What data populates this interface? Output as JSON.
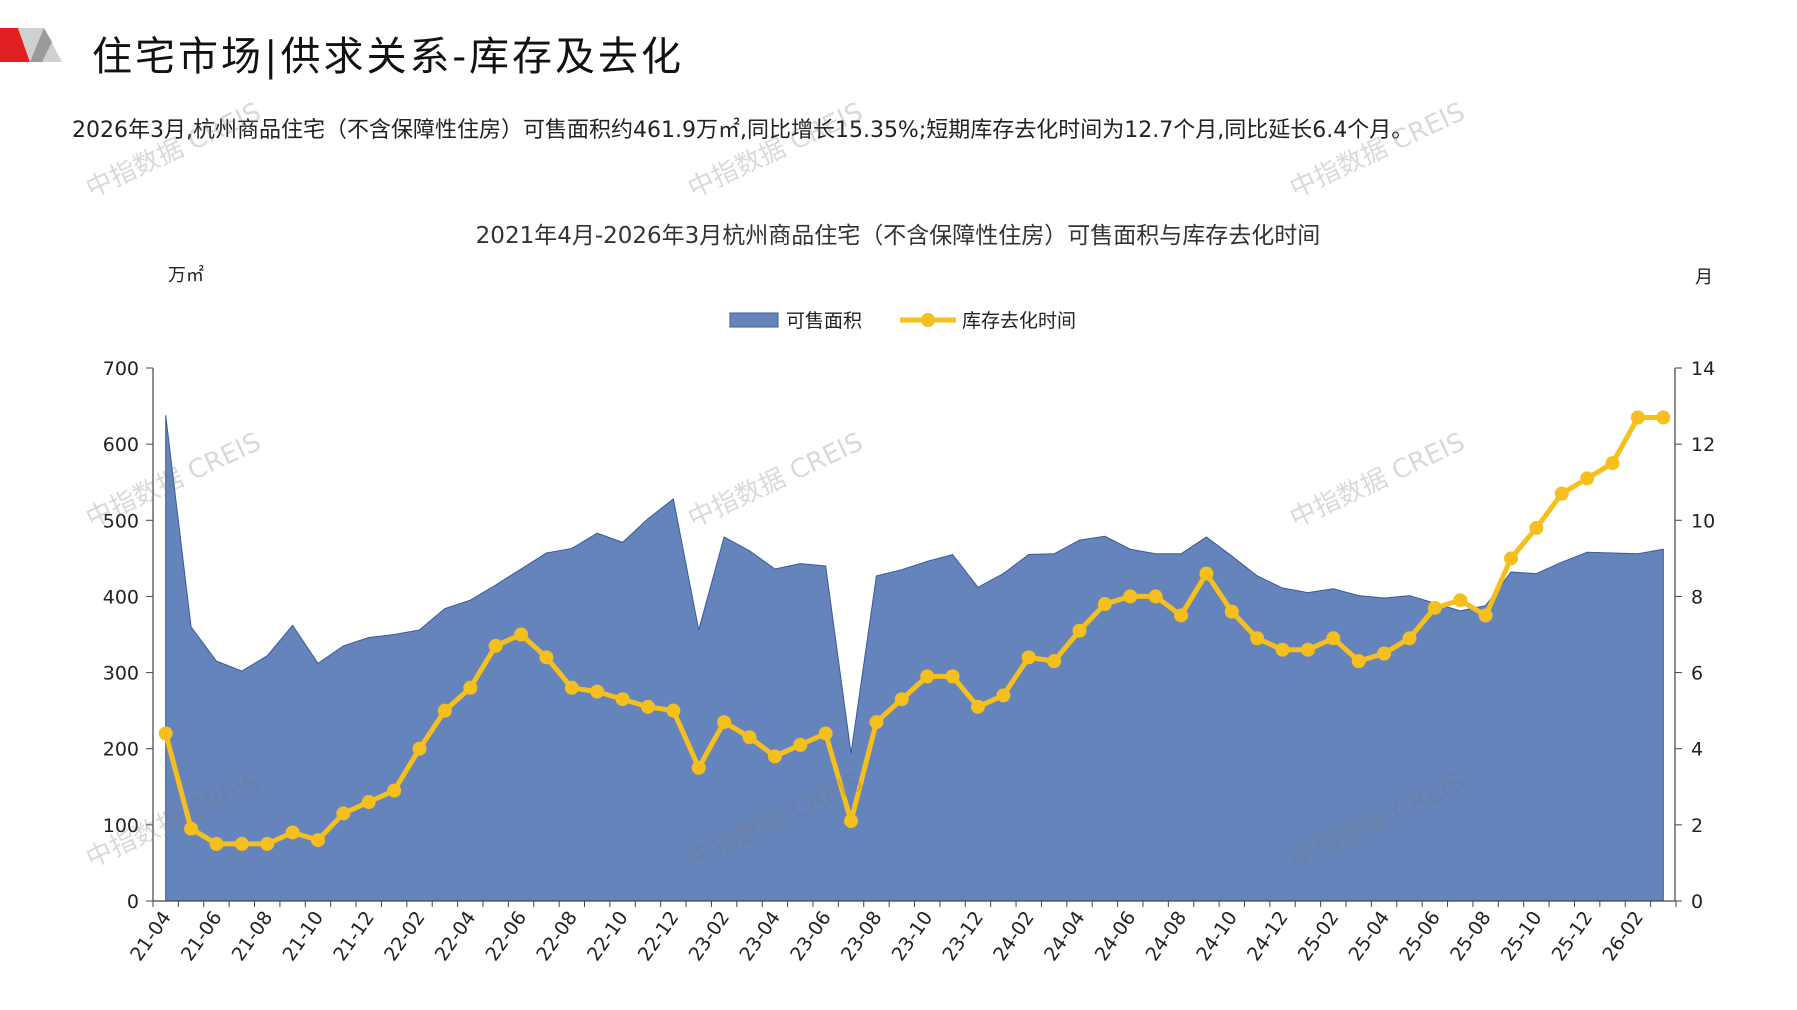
{
  "header": {
    "title": "住宅市场|供求关系-库存及去化",
    "summary": "2026年3月,杭州商品住宅（不含保障性住房）可售面积约461.9万㎡,同比增长15.35%;短期库存去化时间为12.7个月,同比延长6.4个月。"
  },
  "watermark": "中指数据 CREIS",
  "colors": {
    "area": "#6584BC",
    "area_edge": "#3A5A9A",
    "line": "#F5C01D",
    "accent_red": "#E02020"
  },
  "chart_data": {
    "type": "area+line",
    "title": "2021年4月-2026年3月杭州商品住宅（不含保障性住房）可售面积与库存去化时间",
    "y_left_unit": "万㎡",
    "y_right_unit": "月",
    "ylim_left": [
      0,
      700
    ],
    "ylim_right": [
      0,
      14
    ],
    "yticks_left": [
      "0",
      "100",
      "200",
      "300",
      "400",
      "500",
      "600",
      "700"
    ],
    "yticks_right": [
      "0",
      "2",
      "4",
      "6",
      "8",
      "10",
      "12",
      "14"
    ],
    "legend": {
      "placement": "top-center",
      "items": [
        "可售面积",
        "库存去化时间"
      ]
    },
    "x_tick_labels": [
      "21-04",
      "21-06",
      "21-08",
      "21-10",
      "21-12",
      "22-02",
      "22-04",
      "22-06",
      "22-08",
      "22-10",
      "22-12",
      "23-02",
      "23-04",
      "23-06",
      "23-08",
      "23-10",
      "23-12",
      "24-02",
      "24-04",
      "24-06",
      "24-08",
      "24-10",
      "24-12",
      "25-02",
      "25-04",
      "25-06",
      "25-08",
      "25-10",
      "25-12",
      "26-02"
    ],
    "x": [
      "21-04",
      "21-05",
      "21-06",
      "21-07",
      "21-08",
      "21-09",
      "21-10",
      "21-11",
      "21-12",
      "22-01",
      "22-02",
      "22-03",
      "22-04",
      "22-05",
      "22-06",
      "22-07",
      "22-08",
      "22-09",
      "22-10",
      "22-11",
      "22-12",
      "23-01",
      "23-02",
      "23-03",
      "23-04",
      "23-05",
      "23-06",
      "23-07",
      "23-08",
      "23-09",
      "23-10",
      "23-11",
      "23-12",
      "24-01",
      "24-02",
      "24-03",
      "24-04",
      "24-05",
      "24-06",
      "24-07",
      "24-08",
      "24-09",
      "24-10",
      "24-11",
      "24-12",
      "25-01",
      "25-02",
      "25-03",
      "25-04",
      "25-05",
      "25-06",
      "25-07",
      "25-08",
      "25-09",
      "25-10",
      "25-11",
      "25-12",
      "26-01",
      "26-02",
      "26-03"
    ],
    "series": [
      {
        "name": "可售面积",
        "axis": "left",
        "values": [
          638,
          360,
          315,
          302,
          322,
          362,
          312,
          335,
          346,
          350,
          356,
          384,
          395,
          415,
          436,
          457,
          463,
          483,
          471,
          502,
          528,
          356,
          478,
          460,
          436,
          443,
          440,
          194,
          427,
          435,
          446,
          455,
          412,
          430,
          455,
          456,
          474,
          479,
          462,
          456,
          456,
          478,
          453,
          427,
          411,
          405,
          410,
          401,
          398,
          401,
          391,
          381,
          388,
          432,
          430,
          445,
          458,
          457,
          456,
          462
        ]
      },
      {
        "name": "库存去化时间",
        "axis": "right",
        "values": [
          4.4,
          1.9,
          1.5,
          1.5,
          1.5,
          1.8,
          1.6,
          2.3,
          2.6,
          2.9,
          4.0,
          5.0,
          5.6,
          6.7,
          7.0,
          6.4,
          5.6,
          5.5,
          5.3,
          5.1,
          5.0,
          3.5,
          4.7,
          4.3,
          3.8,
          4.1,
          4.4,
          2.1,
          4.7,
          5.3,
          5.9,
          5.9,
          5.1,
          5.4,
          6.4,
          6.3,
          7.1,
          7.8,
          8.0,
          8.0,
          7.5,
          8.6,
          7.6,
          6.9,
          6.6,
          6.6,
          6.9,
          6.3,
          6.5,
          6.9,
          7.7,
          7.9,
          7.5,
          9.0,
          9.8,
          10.7,
          11.1,
          11.5,
          12.7,
          12.7
        ]
      }
    ]
  }
}
